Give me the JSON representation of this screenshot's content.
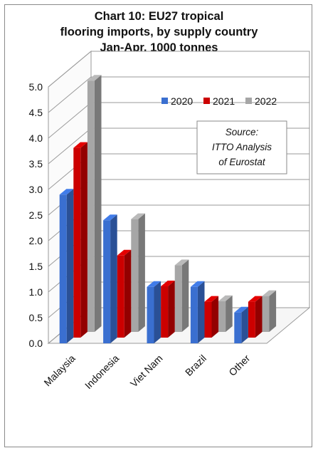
{
  "chart_data": {
    "type": "bar",
    "title_lines": [
      "Chart 10: EU27 tropical",
      "flooring imports, by supply country",
      "Jan-Apr, 1000 tonnes"
    ],
    "categories": [
      "Malaysia",
      "Indonesia",
      "Viet Nam",
      "Brazil",
      "Other"
    ],
    "series": [
      {
        "name": "2020",
        "color": "#3a6fd0",
        "values": [
          2.9,
          2.4,
          1.1,
          1.1,
          0.6
        ]
      },
      {
        "name": "2021",
        "color": "#cc0000",
        "values": [
          3.7,
          1.6,
          1.0,
          0.7,
          0.7
        ]
      },
      {
        "name": "2022",
        "color": "#a6a6a6",
        "values": [
          4.9,
          2.2,
          1.3,
          0.6,
          0.7
        ]
      }
    ],
    "ylim": [
      0,
      5.0
    ],
    "yticks": [
      "0.0",
      "0.5",
      "1.0",
      "1.5",
      "2.0",
      "2.5",
      "3.0",
      "3.5",
      "4.0",
      "4.5",
      "5.0"
    ],
    "grid": true,
    "legend_position": "top-right",
    "annotation_lines": [
      "Source:",
      "ITTO Analysis",
      "of Eurostat"
    ]
  }
}
